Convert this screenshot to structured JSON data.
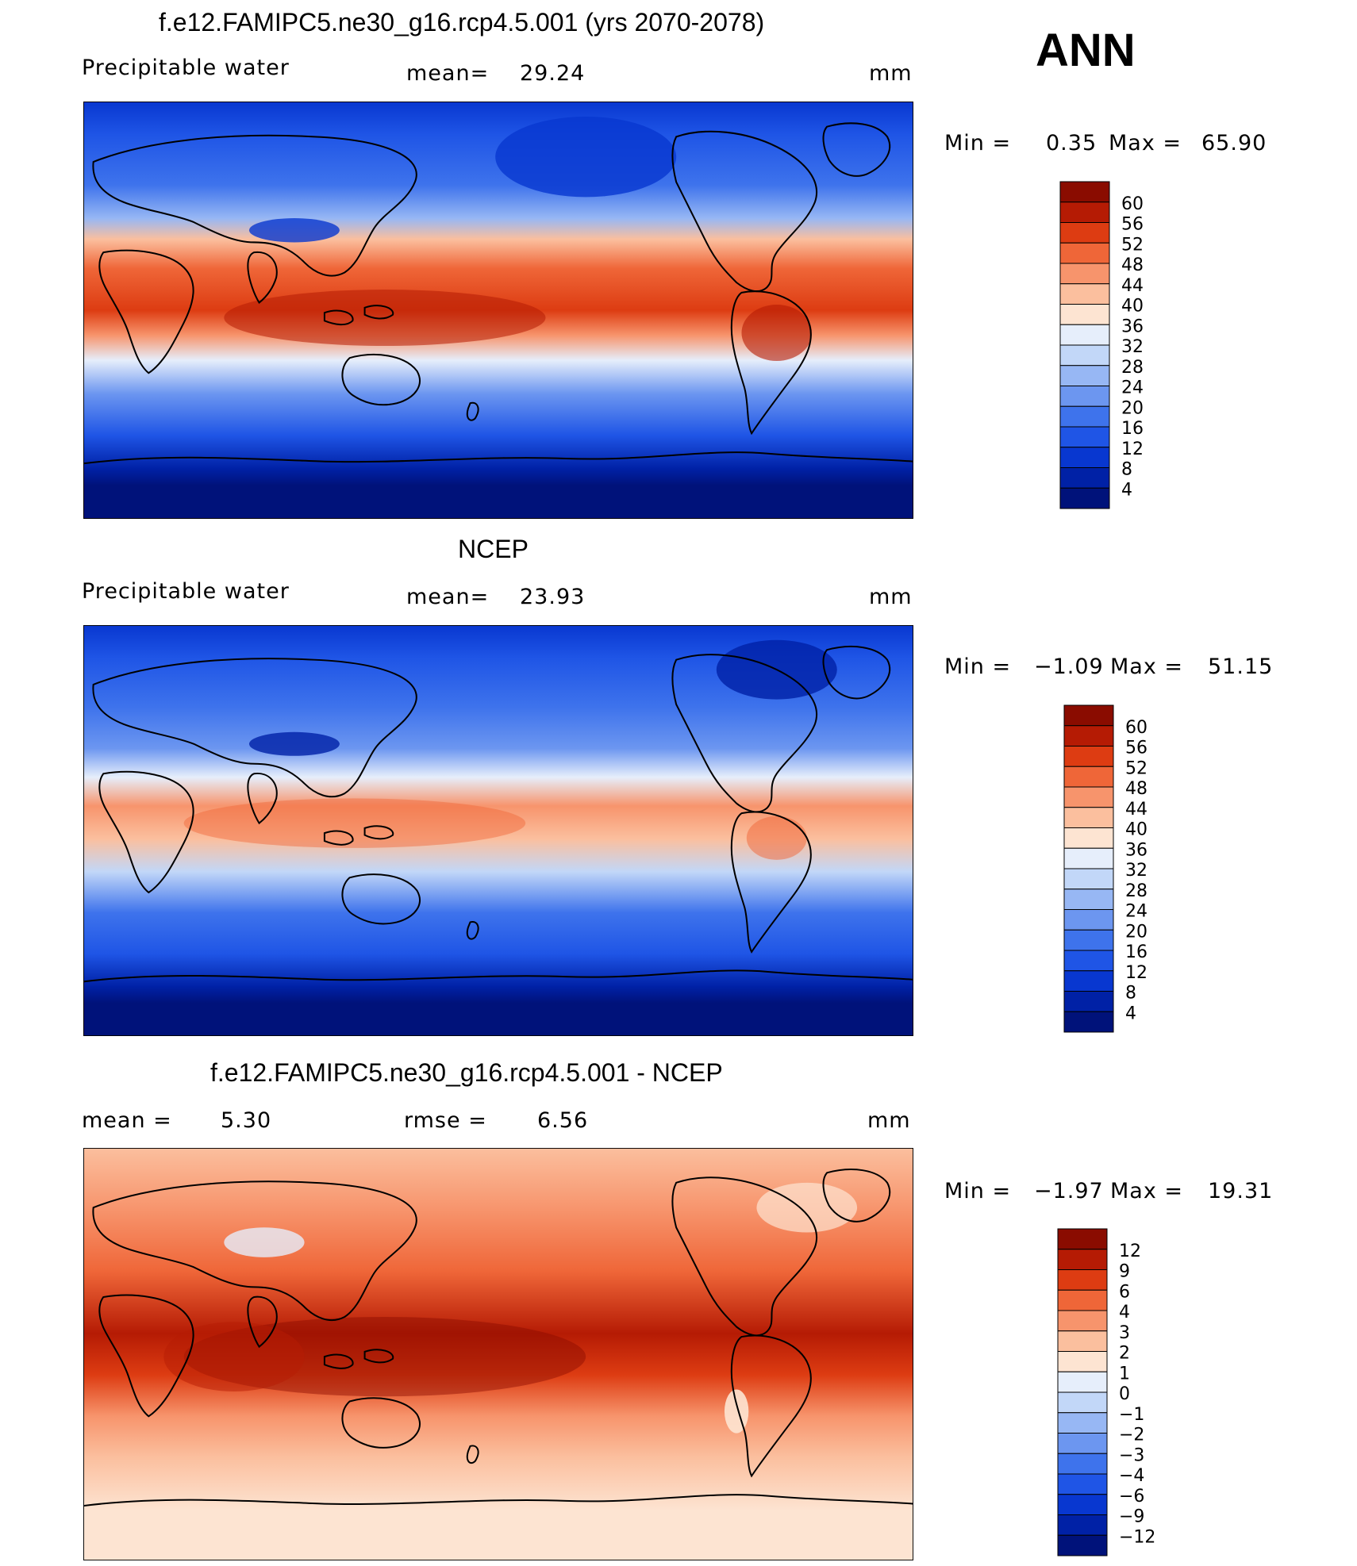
{
  "season": "ANN",
  "panels": [
    {
      "title": "f.e12.FAMIPC5.ne30_g16.rcp4.5.001 (yrs 2070-2078)",
      "variable": "Precipitable  water",
      "stat_label": "mean=",
      "stat_value": "29.24",
      "units": "mm",
      "min_label": "Min  =",
      "min_value": "0.35",
      "max_label": "Max  =",
      "max_value": "65.90"
    },
    {
      "title": "NCEP",
      "variable": "Precipitable  water",
      "stat_label": "mean=",
      "stat_value": "23.93",
      "units": "mm",
      "min_label": "Min  =",
      "min_value": "−1.09",
      "max_label": "Max  =",
      "max_value": "51.15"
    },
    {
      "title": "f.e12.FAMIPC5.ne30_g16.rcp4.5.001 - NCEP",
      "variable": "mean  =",
      "variable_value": "5.30",
      "stat_label": "rmse  =",
      "stat_value": "6.56",
      "units": "mm",
      "min_label": "Min  =",
      "min_value": "−1.97",
      "max_label": "Max  =",
      "max_value": "19.31"
    }
  ],
  "chart_data": [
    {
      "type": "heatmap",
      "title": "f.e12.FAMIPC5.ne30_g16.rcp4.5.001 (yrs 2070-2078)",
      "colorbar": {
        "levels": [
          "4",
          "8",
          "12",
          "16",
          "20",
          "24",
          "28",
          "32",
          "36",
          "40",
          "44",
          "48",
          "52",
          "56",
          "60"
        ],
        "colors": [
          "#00127a",
          "#0021a6",
          "#0837d0",
          "#1f55e6",
          "#3e73ec",
          "#6c96f0",
          "#97b7f4",
          "#c2d7f8",
          "#e6eefb",
          "#fde4d2",
          "#fbbf9e",
          "#f7946c",
          "#ef6638",
          "#dd3c12",
          "#b51b04",
          "#8a0c00"
        ]
      }
    },
    {
      "type": "heatmap",
      "title": "NCEP",
      "colorbar": {
        "levels": [
          "4",
          "8",
          "12",
          "16",
          "20",
          "24",
          "28",
          "32",
          "36",
          "40",
          "44",
          "48",
          "52",
          "56",
          "60"
        ],
        "colors": [
          "#00127a",
          "#0021a6",
          "#0837d0",
          "#1f55e6",
          "#3e73ec",
          "#6c96f0",
          "#97b7f4",
          "#c2d7f8",
          "#e6eefb",
          "#fde4d2",
          "#fbbf9e",
          "#f7946c",
          "#ef6638",
          "#dd3c12",
          "#b51b04",
          "#8a0c00"
        ]
      }
    },
    {
      "type": "heatmap",
      "title": "f.e12.FAMIPC5.ne30_g16.rcp4.5.001 - NCEP",
      "colorbar": {
        "levels": [
          "−12",
          "−9",
          "−6",
          "−4",
          "−3",
          "−2",
          "−1",
          "0",
          "1",
          "2",
          "3",
          "4",
          "6",
          "9",
          "12"
        ],
        "colors": [
          "#00127a",
          "#0021a6",
          "#0837d0",
          "#1f55e6",
          "#3e73ec",
          "#6c96f0",
          "#97b7f4",
          "#c2d7f8",
          "#e6eefb",
          "#fde4d2",
          "#fbbf9e",
          "#f7946c",
          "#ef6638",
          "#dd3c12",
          "#b51b04",
          "#8a0c00"
        ]
      }
    }
  ]
}
